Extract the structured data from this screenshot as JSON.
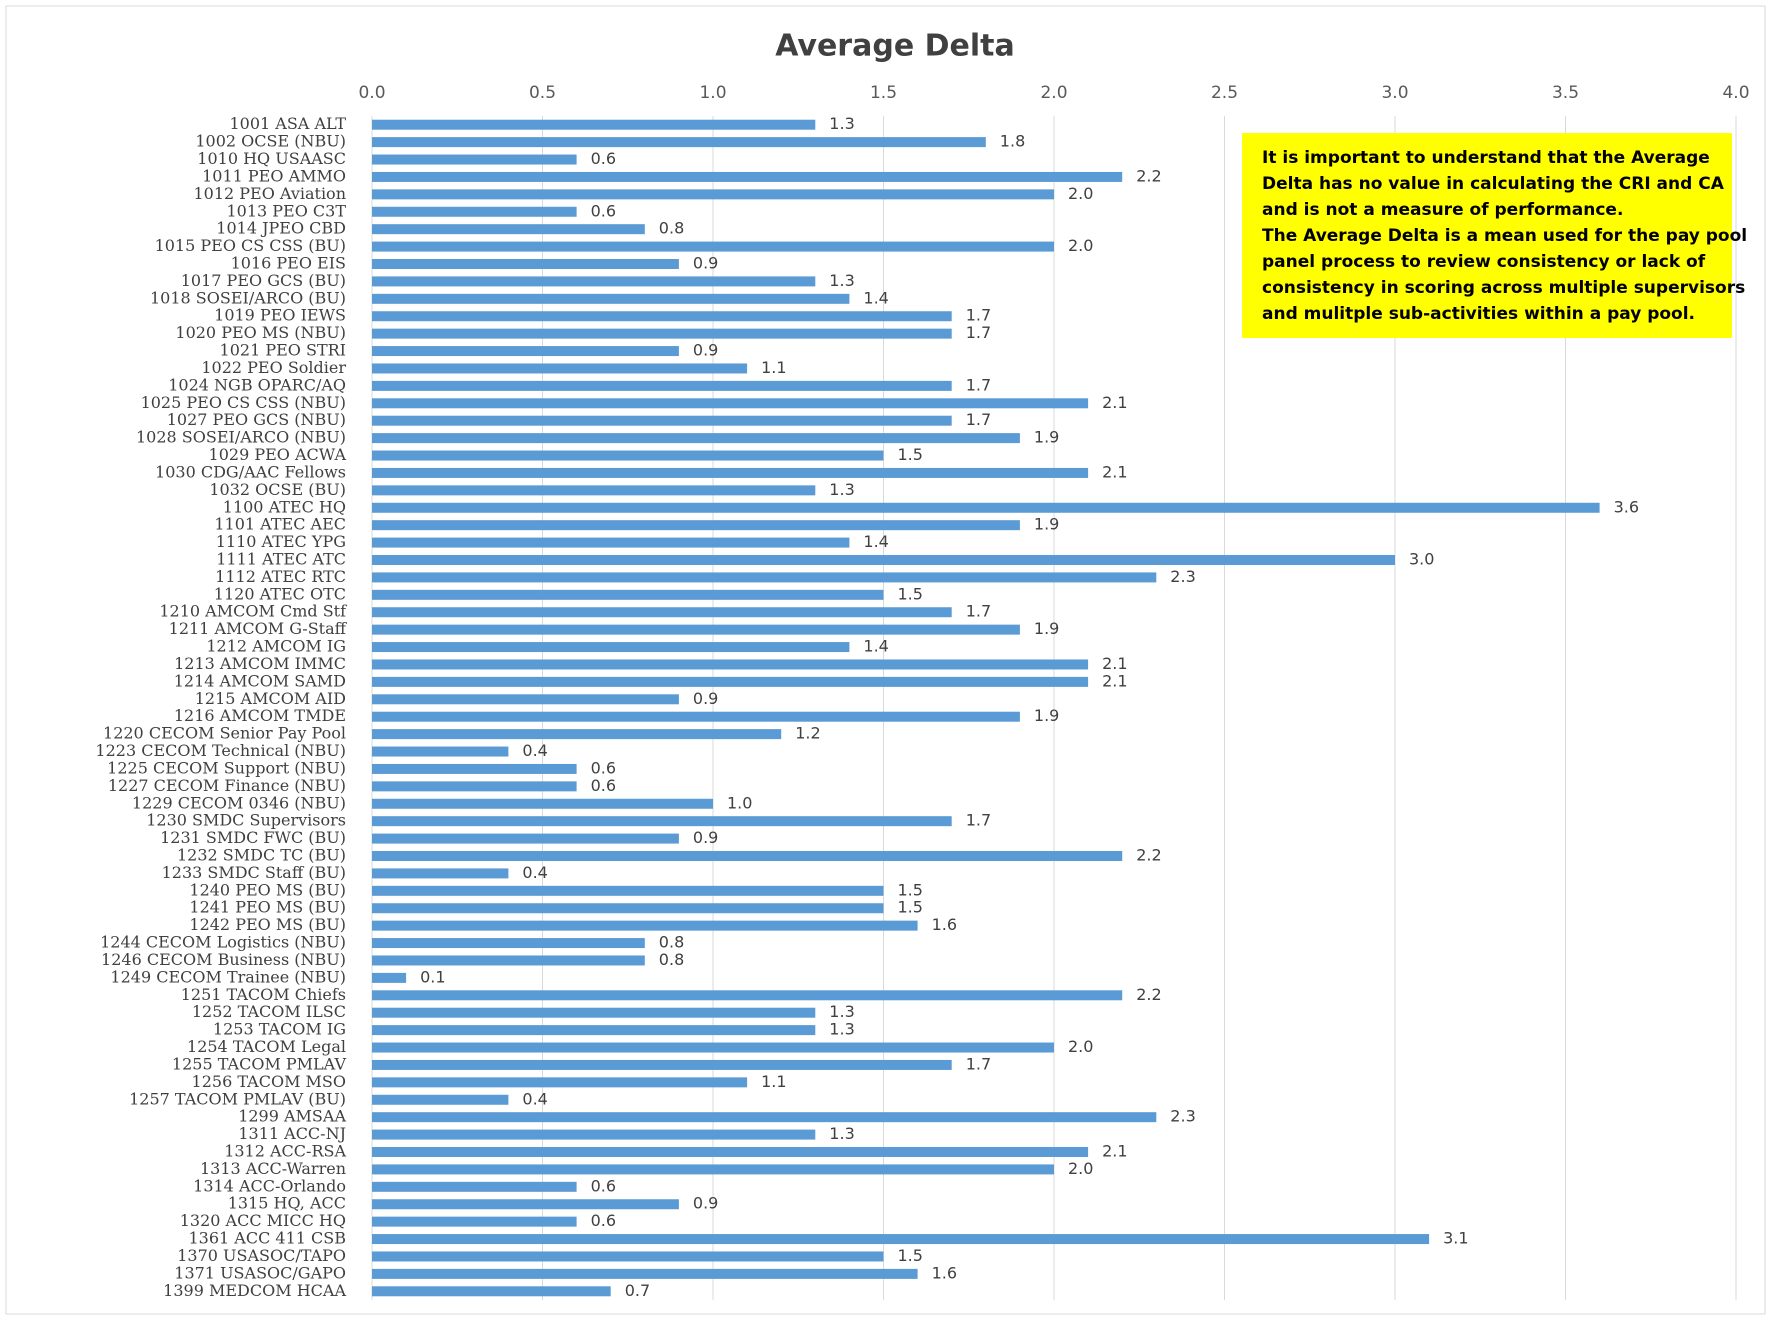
{
  "chart_data": {
    "type": "bar",
    "orientation": "horizontal",
    "title": "Average Delta",
    "categories": [
      "1001 ASA ALT",
      "1002 OCSE (NBU)",
      "1010 HQ USAASC",
      "1011 PEO AMMO",
      "1012 PEO Aviation",
      "1013 PEO C3T",
      "1014 JPEO CBD",
      "1015 PEO CS CSS (BU)",
      "1016 PEO EIS",
      "1017 PEO GCS (BU)",
      "1018 SOSEI/ARCO (BU)",
      "1019 PEO IEWS",
      "1020 PEO MS (NBU)",
      "1021 PEO STRI",
      "1022 PEO Soldier",
      "1024 NGB OPARC/AQ",
      "1025 PEO CS CSS (NBU)",
      "1027 PEO GCS (NBU)",
      "1028 SOSEI/ARCO (NBU)",
      "1029 PEO ACWA",
      "1030 CDG/AAC Fellows",
      "1032 OCSE (BU)",
      "1100 ATEC HQ",
      "1101 ATEC AEC",
      "1110 ATEC YPG",
      "1111 ATEC ATC",
      "1112 ATEC RTC",
      "1120 ATEC OTC",
      "1210 AMCOM Cmd Stf",
      "1211 AMCOM G-Staff",
      "1212 AMCOM IG",
      "1213 AMCOM IMMC",
      "1214 AMCOM SAMD",
      "1215 AMCOM AID",
      "1216 AMCOM TMDE",
      "1220 CECOM Senior Pay Pool",
      "1223 CECOM Technical (NBU)",
      "1225 CECOM Support (NBU)",
      "1227 CECOM Finance (NBU)",
      "1229 CECOM 0346 (NBU)",
      "1230 SMDC Supervisors",
      "1231 SMDC FWC (BU)",
      "1232 SMDC TC (BU)",
      "1233 SMDC Staff (BU)",
      "1240 PEO MS (BU)",
      "1241 PEO MS (BU)",
      "1242 PEO MS (BU)",
      "1244 CECOM Logistics (NBU)",
      "1246 CECOM Business (NBU)",
      "1249 CECOM Trainee (NBU)",
      "1251 TACOM Chiefs",
      "1252 TACOM ILSC",
      "1253 TACOM IG",
      "1254 TACOM Legal",
      "1255 TACOM PMLAV",
      "1256 TACOM MSO",
      "1257 TACOM PMLAV (BU)",
      "1299 AMSAA",
      "1311 ACC-NJ",
      "1312 ACC-RSA",
      "1313 ACC-Warren",
      "1314 ACC-Orlando",
      "1315 HQ, ACC",
      "1320 ACC MICC HQ",
      "1361 ACC 411 CSB",
      "1370 USASOC/TAPO",
      "1371 USASOC/GAPO",
      "1399 MEDCOM HCAA"
    ],
    "values": [
      1.3,
      1.8,
      0.6,
      2.2,
      2.0,
      0.6,
      0.8,
      2.0,
      0.9,
      1.3,
      1.4,
      1.7,
      1.7,
      0.9,
      1.1,
      1.7,
      2.1,
      1.7,
      1.9,
      1.5,
      2.1,
      1.3,
      3.6,
      1.9,
      1.4,
      3.0,
      2.3,
      1.5,
      1.7,
      1.9,
      1.4,
      2.1,
      2.1,
      0.9,
      1.9,
      1.2,
      0.4,
      0.6,
      0.6,
      1.0,
      1.7,
      0.9,
      2.2,
      0.4,
      1.5,
      1.5,
      1.6,
      0.8,
      0.8,
      0.1,
      2.2,
      1.3,
      1.3,
      2.0,
      1.7,
      1.1,
      0.4,
      2.3,
      1.3,
      2.1,
      2.0,
      0.6,
      0.9,
      0.6,
      3.1,
      1.5,
      1.6,
      0.7
    ],
    "value_labels": [
      "1.3",
      "1.8",
      "0.6",
      "2.2",
      "2.0",
      "0.6",
      "0.8",
      "2.0",
      "0.9",
      "1.3",
      "1.4",
      "1.7",
      "1.7",
      "0.9",
      "1.1",
      "1.7",
      "2.1",
      "1.7",
      "1.9",
      "1.5",
      "2.1",
      "1.3",
      "3.6",
      "1.9",
      "1.4",
      "3.0",
      "2.3",
      "1.5",
      "1.7",
      "1.9",
      "1.4",
      "2.1",
      "2.1",
      "0.9",
      "1.9",
      "1.2",
      "0.4",
      "0.6",
      "0.6",
      "1.0",
      "1.7",
      "0.9",
      "2.2",
      "0.4",
      "1.5",
      "1.5",
      "1.6",
      "0.8",
      "0.8",
      "0.1",
      "2.2",
      "1.3",
      "1.3",
      "2.0",
      "1.7",
      "1.1",
      "0.4",
      "2.3",
      "1.3",
      "2.1",
      "2.0",
      "0.6",
      "0.9",
      "0.6",
      "3.1",
      "1.5",
      "1.6",
      "0.7"
    ],
    "color": "#5b9bd5",
    "xlim": [
      0,
      4
    ],
    "xticks": [
      {
        "value": 0,
        "label": "0.0"
      },
      {
        "value": 0.5,
        "label": "0.5"
      },
      {
        "value": 1,
        "label": "1.0"
      },
      {
        "value": 1.5,
        "label": "1.5"
      },
      {
        "value": 2,
        "label": "2.0"
      },
      {
        "value": 2.5,
        "label": "2.5"
      },
      {
        "value": 3,
        "label": "3.0"
      },
      {
        "value": 3.5,
        "label": "3.5"
      },
      {
        "value": 4,
        "label": "4.0"
      }
    ],
    "grid": true,
    "annotation": {
      "color": "#ffff00",
      "lines": [
        "It is important to understand that  the Average",
        "Delta has no value in calculating the CRI and CA",
        "and is not a measure of performance.",
        "The Average Delta is a mean used for the pay pool",
        "panel process to review consistency or lack of",
        "consistency in scoring across multiple supervisors",
        "and mulitple sub-activities within a pay pool."
      ]
    }
  }
}
